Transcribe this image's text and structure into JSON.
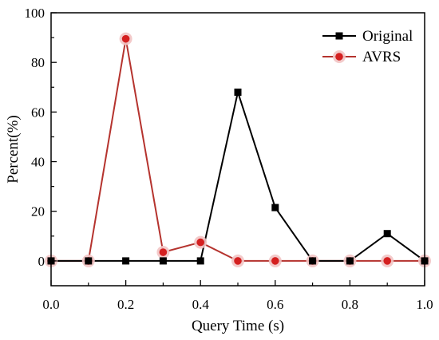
{
  "chart_data": {
    "type": "line",
    "title": "",
    "xlabel": "Query Time (s)",
    "ylabel": "Percent(%)",
    "xlim": [
      0.0,
      1.0
    ],
    "ylim": [
      -10,
      100
    ],
    "x_ticks": [
      "0.0",
      "0.2",
      "0.4",
      "0.6",
      "0.8",
      "1.0"
    ],
    "y_ticks": [
      "0",
      "20",
      "40",
      "60",
      "80",
      "100"
    ],
    "grid": false,
    "legend_position": "top-right",
    "series": [
      {
        "name": "Original",
        "color": "#000000",
        "marker": "square",
        "x": [
          0.0,
          0.1,
          0.2,
          0.3,
          0.4,
          0.5,
          0.6,
          0.7,
          0.8,
          0.9,
          1.0
        ],
        "y": [
          0,
          0,
          0,
          0,
          0,
          68,
          21.5,
          0,
          0,
          11,
          0
        ]
      },
      {
        "name": "AVRS",
        "color": "#b5332e",
        "marker": "circle",
        "marker_color": "#d42020",
        "x": [
          0.0,
          0.1,
          0.2,
          0.3,
          0.4,
          0.5,
          0.6,
          0.7,
          0.8,
          0.9,
          1.0
        ],
        "y": [
          0,
          0,
          89.5,
          3.5,
          7.5,
          0,
          0,
          0,
          0,
          0,
          0
        ]
      }
    ]
  }
}
